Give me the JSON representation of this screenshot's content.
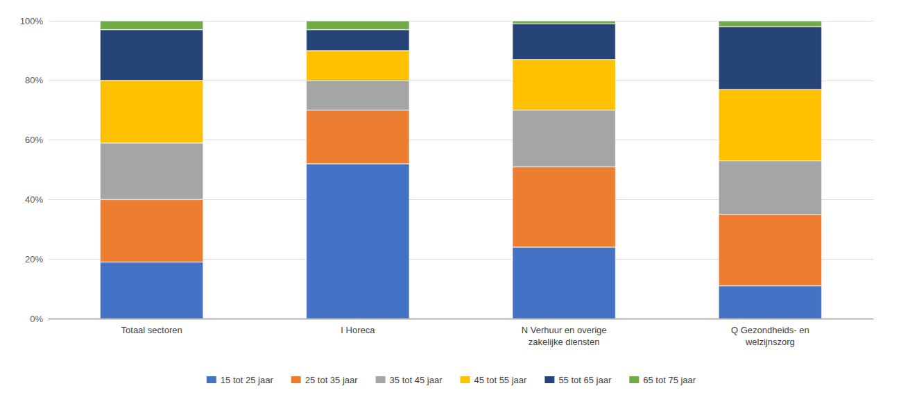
{
  "chart_data": {
    "type": "bar",
    "stacked": true,
    "categories": [
      "Totaal sectoren",
      "I Horeca",
      "N Verhuur en overige\nzakelijke diensten",
      "Q Gezondheids- en\nwelzijnszorg"
    ],
    "series": [
      {
        "name": "15 tot 25 jaar",
        "color": "#4472C4",
        "values": [
          0.19,
          0.52,
          0.24,
          0.11
        ]
      },
      {
        "name": "25 tot 35 jaar",
        "color": "#ED7D31",
        "values": [
          0.21,
          0.18,
          0.27,
          0.24
        ]
      },
      {
        "name": "35 tot 45 jaar",
        "color": "#A5A5A5",
        "values": [
          0.19,
          0.1,
          0.19,
          0.18
        ]
      },
      {
        "name": "45 tot 55 jaar",
        "color": "#FFC000",
        "values": [
          0.21,
          0.1,
          0.17,
          0.24
        ]
      },
      {
        "name": "55 tot 65 jaar",
        "color": "#264478",
        "values": [
          0.17,
          0.07,
          0.12,
          0.21
        ]
      },
      {
        "name": "65 tot 75 jaar",
        "color": "#70AD47",
        "values": [
          0.03,
          0.03,
          0.01,
          0.02
        ]
      }
    ],
    "ylim": [
      0,
      1.0
    ],
    "yticks": [
      {
        "value": 0.0,
        "label": "0%"
      },
      {
        "value": 0.2,
        "label": "20%"
      },
      {
        "value": 0.4,
        "label": "40%"
      },
      {
        "value": 0.6,
        "label": "60%"
      },
      {
        "value": 0.8,
        "label": "80%"
      },
      {
        "value": 1.0,
        "label": "100%"
      }
    ],
    "grid": true,
    "legend": "bottom"
  }
}
